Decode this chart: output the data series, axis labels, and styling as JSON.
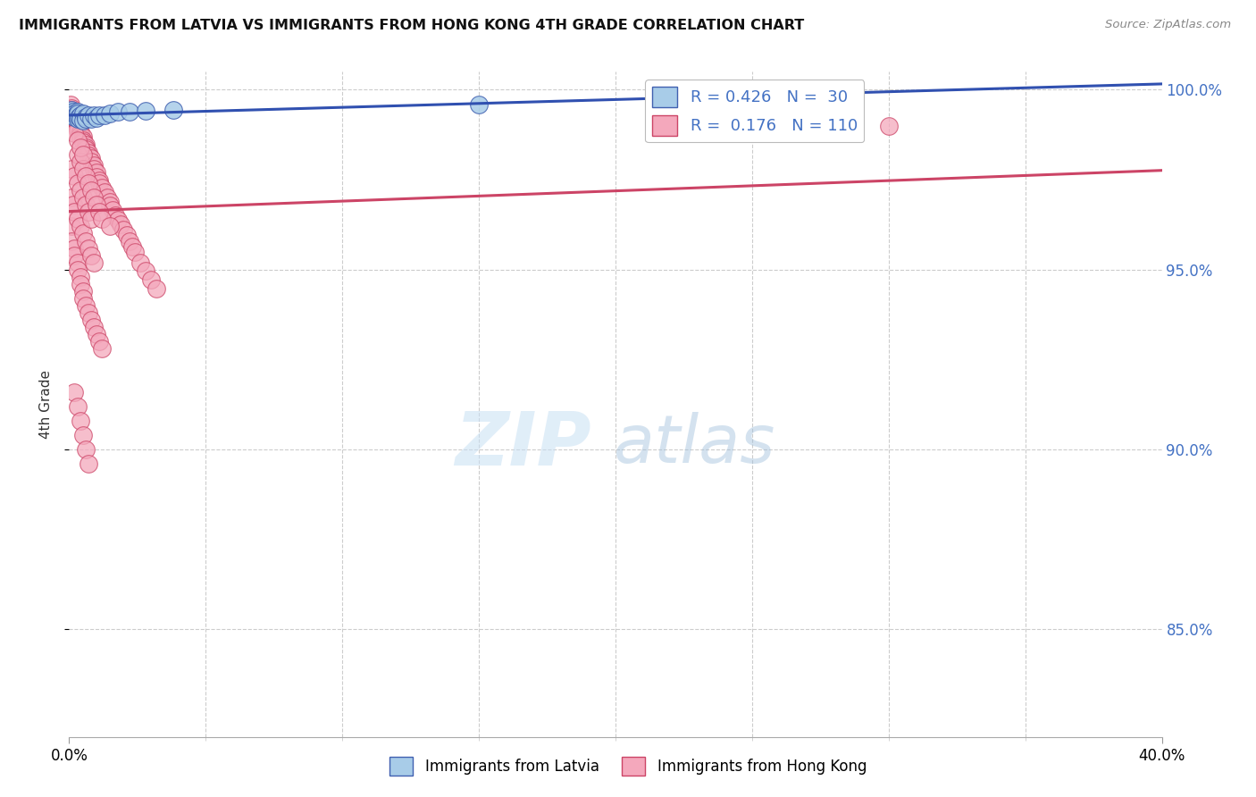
{
  "title": "IMMIGRANTS FROM LATVIA VS IMMIGRANTS FROM HONG KONG 4TH GRADE CORRELATION CHART",
  "source": "Source: ZipAtlas.com",
  "ylabel": "4th Grade",
  "x_min": 0.0,
  "x_max": 0.4,
  "y_min": 0.82,
  "y_max": 1.005,
  "ytick_vals": [
    0.85,
    0.9,
    0.95,
    1.0
  ],
  "ytick_labels": [
    "85.0%",
    "90.0%",
    "95.0%",
    "100.0%"
  ],
  "xtick_edges": [
    0.0,
    0.4
  ],
  "xtick_edge_labels": [
    "0.0%",
    "40.0%"
  ],
  "xtick_minor": [
    0.05,
    0.1,
    0.15,
    0.2,
    0.25,
    0.3,
    0.35
  ],
  "color_latvia_face": "#a8cce8",
  "color_latvia_edge": "#4060b0",
  "color_hk_face": "#f4a8bc",
  "color_hk_edge": "#cc4466",
  "trendline_color_latvia": "#3050b0",
  "trendline_color_hk": "#cc4466",
  "legend_label_color": "#4472c4",
  "grid_color": "#cccccc",
  "background_color": "#ffffff",
  "bottom_legend_labels": [
    "Immigrants from Latvia",
    "Immigrants from Hong Kong"
  ],
  "latvia_x": [
    0.0008,
    0.001,
    0.001,
    0.0012,
    0.0015,
    0.002,
    0.002,
    0.0025,
    0.003,
    0.003,
    0.003,
    0.0035,
    0.004,
    0.004,
    0.005,
    0.005,
    0.006,
    0.006,
    0.007,
    0.008,
    0.009,
    0.01,
    0.011,
    0.013,
    0.015,
    0.018,
    0.022,
    0.028,
    0.038,
    0.15
  ],
  "latvia_y": [
    0.9935,
    0.994,
    0.9945,
    0.993,
    0.994,
    0.9925,
    0.9935,
    0.993,
    0.994,
    0.992,
    0.9935,
    0.9925,
    0.993,
    0.992,
    0.9935,
    0.9915,
    0.9925,
    0.9918,
    0.993,
    0.992,
    0.9928,
    0.9922,
    0.993,
    0.9928,
    0.9935,
    0.994,
    0.9938,
    0.9942,
    0.9945,
    0.996
  ],
  "hk_x": [
    0.0005,
    0.0008,
    0.001,
    0.001,
    0.001,
    0.0012,
    0.0015,
    0.002,
    0.002,
    0.002,
    0.002,
    0.0025,
    0.003,
    0.003,
    0.003,
    0.003,
    0.004,
    0.004,
    0.004,
    0.005,
    0.005,
    0.005,
    0.006,
    0.006,
    0.006,
    0.007,
    0.007,
    0.008,
    0.008,
    0.009,
    0.009,
    0.01,
    0.01,
    0.011,
    0.011,
    0.012,
    0.013,
    0.014,
    0.015,
    0.015,
    0.016,
    0.017,
    0.018,
    0.019,
    0.02,
    0.021,
    0.022,
    0.023,
    0.024,
    0.026,
    0.028,
    0.03,
    0.032,
    0.001,
    0.001,
    0.002,
    0.002,
    0.003,
    0.003,
    0.004,
    0.004,
    0.005,
    0.005,
    0.006,
    0.007,
    0.008,
    0.009,
    0.01,
    0.011,
    0.012,
    0.001,
    0.0015,
    0.002,
    0.003,
    0.004,
    0.005,
    0.006,
    0.007,
    0.008,
    0.009,
    0.001,
    0.002,
    0.003,
    0.004,
    0.005,
    0.006,
    0.007,
    0.008,
    0.003,
    0.004,
    0.005,
    0.006,
    0.007,
    0.008,
    0.009,
    0.01,
    0.011,
    0.012,
    0.015,
    0.002,
    0.003,
    0.004,
    0.005,
    0.002,
    0.003,
    0.004,
    0.005,
    0.006,
    0.007,
    0.3
  ],
  "hk_y": [
    0.996,
    0.995,
    0.9945,
    0.9938,
    0.993,
    0.9935,
    0.9925,
    0.992,
    0.9928,
    0.9918,
    0.9912,
    0.9915,
    0.9908,
    0.99,
    0.9895,
    0.9888,
    0.9882,
    0.9875,
    0.9868,
    0.987,
    0.986,
    0.9855,
    0.9848,
    0.984,
    0.9835,
    0.9825,
    0.9818,
    0.981,
    0.98,
    0.979,
    0.978,
    0.977,
    0.9758,
    0.9748,
    0.974,
    0.9728,
    0.9715,
    0.97,
    0.9688,
    0.9678,
    0.9665,
    0.965,
    0.9638,
    0.9625,
    0.961,
    0.9595,
    0.958,
    0.9565,
    0.9548,
    0.952,
    0.9498,
    0.9472,
    0.9448,
    0.962,
    0.958,
    0.956,
    0.954,
    0.952,
    0.95,
    0.948,
    0.946,
    0.944,
    0.942,
    0.94,
    0.938,
    0.936,
    0.934,
    0.932,
    0.93,
    0.928,
    0.97,
    0.968,
    0.966,
    0.964,
    0.962,
    0.96,
    0.958,
    0.956,
    0.954,
    0.952,
    0.978,
    0.976,
    0.974,
    0.972,
    0.97,
    0.968,
    0.966,
    0.964,
    0.982,
    0.98,
    0.978,
    0.976,
    0.974,
    0.972,
    0.97,
    0.968,
    0.966,
    0.964,
    0.962,
    0.988,
    0.986,
    0.984,
    0.982,
    0.916,
    0.912,
    0.908,
    0.904,
    0.9,
    0.896,
    0.99
  ]
}
